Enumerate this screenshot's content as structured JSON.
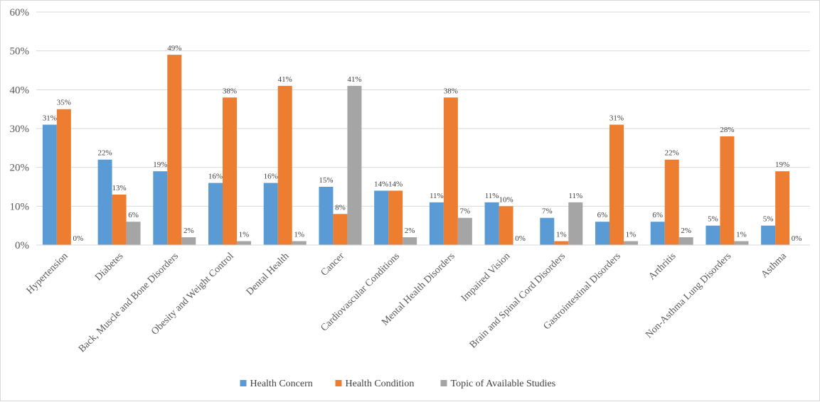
{
  "chart_data": {
    "type": "bar",
    "title": "",
    "xlabel": "",
    "ylabel": "",
    "ylim": [
      0,
      60
    ],
    "yticks": [
      0,
      10,
      20,
      30,
      40,
      50,
      60
    ],
    "ytick_labels": [
      "0%",
      "10%",
      "20%",
      "30%",
      "40%",
      "50%",
      "60%"
    ],
    "value_suffix": "%",
    "grid": true,
    "legend_position": "bottom",
    "categories": [
      "Hypertension",
      "Diabetes",
      "Back, Muscle and Bone Disorders",
      "Obesity and Weight Control",
      "Dental Health",
      "Cancer",
      "Cardiovascular Conditions",
      "Mental Health Disorders",
      "Impaired Vision",
      "Brain and Spinal Cord Disorders",
      "Gastrointestinal Disorders",
      "Arthritis",
      "Non-Asthma Lung Disorders",
      "Asthma"
    ],
    "series": [
      {
        "name": "Health Concern",
        "color": "#5b9bd5",
        "values": [
          31,
          22,
          19,
          16,
          16,
          15,
          14,
          11,
          11,
          7,
          6,
          6,
          5,
          5
        ]
      },
      {
        "name": "Health Condition",
        "color": "#ed7d31",
        "values": [
          35,
          13,
          49,
          38,
          41,
          8,
          14,
          38,
          10,
          1,
          31,
          22,
          28,
          19
        ]
      },
      {
        "name": "Topic of Available Studies",
        "color": "#a5a5a5",
        "values": [
          0,
          6,
          2,
          1,
          1,
          41,
          2,
          7,
          0,
          11,
          1,
          2,
          1,
          0
        ]
      }
    ]
  }
}
